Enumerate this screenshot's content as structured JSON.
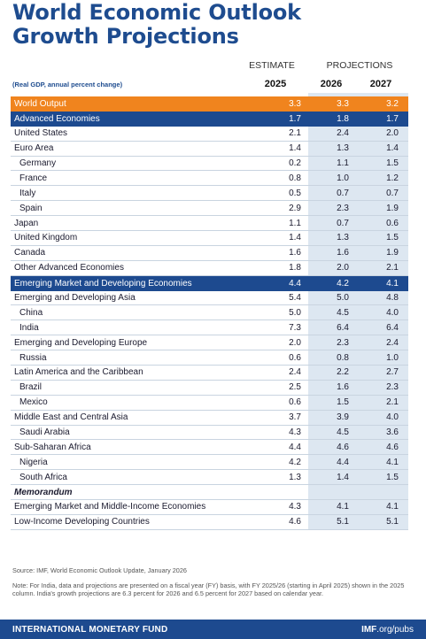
{
  "title_line1": "World Economic Outlook",
  "title_line2": "Growth Projections",
  "header": {
    "estimate": "ESTIMATE",
    "projections": "PROJECTIONS",
    "subtitle": "(Real GDP, annual percent change)",
    "years": [
      "2025",
      "2026",
      "2027"
    ]
  },
  "rows": [
    {
      "label": "World Output",
      "v": [
        "3.3",
        "3.3",
        "3.2"
      ],
      "style": "orange"
    },
    {
      "label": "Advanced Economies",
      "v": [
        "1.7",
        "1.8",
        "1.7"
      ],
      "style": "blue"
    },
    {
      "label": "United States",
      "v": [
        "2.1",
        "2.4",
        "2.0"
      ]
    },
    {
      "label": "Euro Area",
      "v": [
        "1.4",
        "1.3",
        "1.4"
      ]
    },
    {
      "label": "Germany",
      "v": [
        "0.2",
        "1.1",
        "1.5"
      ],
      "indent": true
    },
    {
      "label": "France",
      "v": [
        "0.8",
        "1.0",
        "1.2"
      ],
      "indent": true
    },
    {
      "label": "Italy",
      "v": [
        "0.5",
        "0.7",
        "0.7"
      ],
      "indent": true
    },
    {
      "label": "Spain",
      "v": [
        "2.9",
        "2.3",
        "1.9"
      ],
      "indent": true
    },
    {
      "label": "Japan",
      "v": [
        "1.1",
        "0.7",
        "0.6"
      ]
    },
    {
      "label": "United Kingdom",
      "v": [
        "1.4",
        "1.3",
        "1.5"
      ]
    },
    {
      "label": "Canada",
      "v": [
        "1.6",
        "1.6",
        "1.9"
      ]
    },
    {
      "label": "Other Advanced Economies",
      "v": [
        "1.8",
        "2.0",
        "2.1"
      ]
    },
    {
      "label": "Emerging Market and Developing Economies",
      "v": [
        "4.4",
        "4.2",
        "4.1"
      ],
      "style": "blue"
    },
    {
      "label": "Emerging and Developing Asia",
      "v": [
        "5.4",
        "5.0",
        "4.8"
      ]
    },
    {
      "label": "China",
      "v": [
        "5.0",
        "4.5",
        "4.0"
      ],
      "indent": true
    },
    {
      "label": "India",
      "v": [
        "7.3",
        "6.4",
        "6.4"
      ],
      "indent": true
    },
    {
      "label": "Emerging and Developing Europe",
      "v": [
        "2.0",
        "2.3",
        "2.4"
      ]
    },
    {
      "label": "Russia",
      "v": [
        "0.6",
        "0.8",
        "1.0"
      ],
      "indent": true
    },
    {
      "label": "Latin America and the Caribbean",
      "v": [
        "2.4",
        "2.2",
        "2.7"
      ]
    },
    {
      "label": "Brazil",
      "v": [
        "2.5",
        "1.6",
        "2.3"
      ],
      "indent": true
    },
    {
      "label": "Mexico",
      "v": [
        "0.6",
        "1.5",
        "2.1"
      ],
      "indent": true
    },
    {
      "label": "Middle East and Central Asia",
      "v": [
        "3.7",
        "3.9",
        "4.0"
      ]
    },
    {
      "label": "Saudi Arabia",
      "v": [
        "4.3",
        "4.5",
        "3.6"
      ],
      "indent": true
    },
    {
      "label": "Sub-Saharan Africa",
      "v": [
        "4.4",
        "4.6",
        "4.6"
      ]
    },
    {
      "label": "Nigeria",
      "v": [
        "4.2",
        "4.4",
        "4.1"
      ],
      "indent": true
    },
    {
      "label": "South Africa",
      "v": [
        "1.3",
        "1.4",
        "1.5"
      ],
      "indent": true
    },
    {
      "label": "Memorandum",
      "v": [
        "",
        "",
        ""
      ],
      "style": "memo"
    },
    {
      "label": "Emerging Market and Middle-Income Economies",
      "v": [
        "4.3",
        "4.1",
        "4.1"
      ]
    },
    {
      "label": "Low-Income Developing Countries",
      "v": [
        "4.6",
        "5.1",
        "5.1"
      ]
    }
  ],
  "source": "Source: IMF, World Economic Outlook Update, January 2026",
  "note": "Note: For India, data and projections are presented on a fiscal year (FY) basis, with FY 2025/26 (starting in April 2025) shown in the 2025 column. India's growth projections are 6.3 percent for 2026 and 6.5 percent for 2027 based on calendar year.",
  "footer": {
    "org": "INTERNATIONAL MONETARY FUND",
    "url_bold": "IMF",
    "url_rest": ".org/pubs"
  },
  "colors": {
    "title": "#1e4c8f",
    "orange": "#f0841e",
    "navy": "#1d4a8f",
    "projection_shade": "#dde7f1"
  }
}
